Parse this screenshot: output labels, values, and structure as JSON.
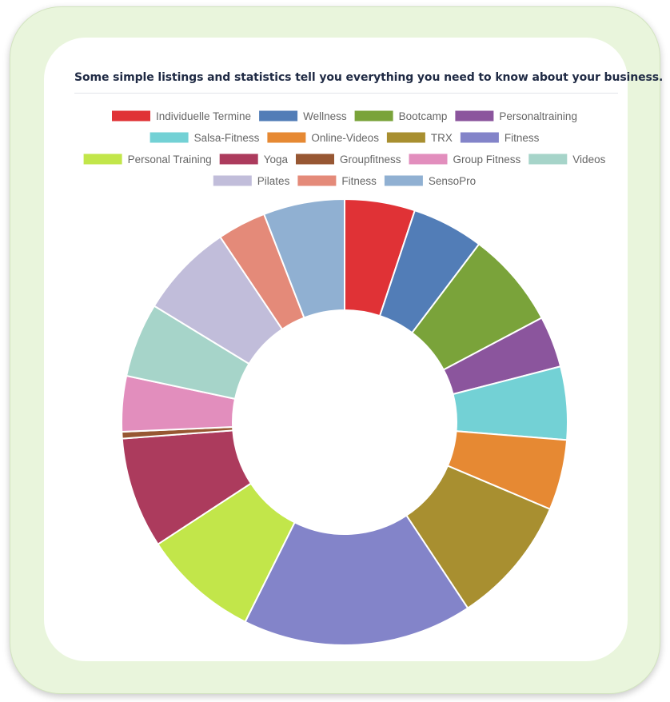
{
  "subtitle": "Some simple listings and statistics tell you everything you need to know about your business.",
  "chart_data": {
    "type": "pie",
    "style": "doughnut",
    "legend_position": "top",
    "series": [
      {
        "label": "Individuelle Termine",
        "value": 5.2,
        "color": "#e03236"
      },
      {
        "label": "Wellness",
        "value": 5.3,
        "color": "#527db7"
      },
      {
        "label": "Bootcamp",
        "value": 7.1,
        "color": "#7aa33a"
      },
      {
        "label": "Personaltraining",
        "value": 3.8,
        "color": "#8b559d"
      },
      {
        "label": "Salsa-Fitness",
        "value": 5.4,
        "color": "#73d1d5"
      },
      {
        "label": "Online-Videos",
        "value": 5.2,
        "color": "#e68933"
      },
      {
        "label": "TRX",
        "value": 9.5,
        "color": "#a88f30"
      },
      {
        "label": "Fitness",
        "value": 17.0,
        "color": "#8384c9"
      },
      {
        "label": "Personal Training",
        "value": 8.6,
        "color": "#c2e64a"
      },
      {
        "label": "Yoga",
        "value": 8.2,
        "color": "#ac3b5d"
      },
      {
        "label": "Groupfitness",
        "value": 0.5,
        "color": "#975733"
      },
      {
        "label": "Group Fitness",
        "value": 4.1,
        "color": "#e28ebd"
      },
      {
        "label": "Videos",
        "value": 5.5,
        "color": "#a6d4c9"
      },
      {
        "label": "Pilates",
        "value": 7.0,
        "color": "#c1bdda"
      },
      {
        "label": "Fitness",
        "value": 3.6,
        "color": "#e48a79"
      },
      {
        "label": "SensoPro",
        "value": 6.0,
        "color": "#90b0d2"
      }
    ]
  }
}
